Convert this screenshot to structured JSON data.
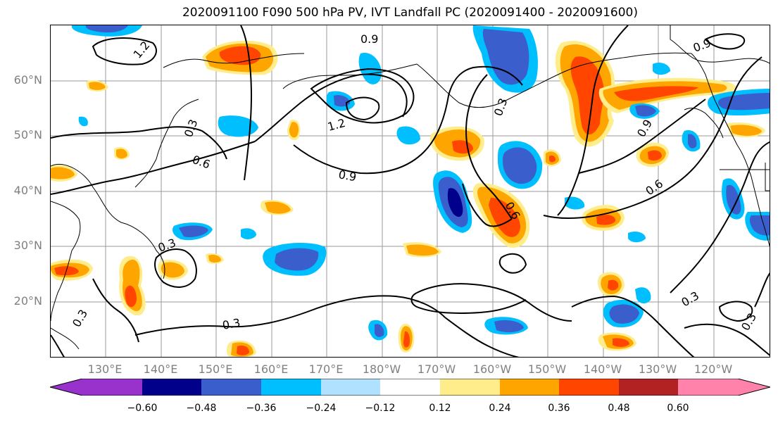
{
  "title": "2020091100 F090 500 hPa PV, IVT Landfall PC (2020091400 - 2020091600)",
  "lat_labels": [
    "60°N",
    "50°N",
    "40°N",
    "30°N",
    "20°N"
  ],
  "lon_labels": [
    "130°E",
    "140°E",
    "150°E",
    "160°E",
    "170°E",
    "180°W",
    "170°W",
    "160°W",
    "150°W",
    "140°W",
    "130°W",
    "120°W"
  ],
  "colorbar": {
    "colors": [
      "#9932cc",
      "#00008b",
      "#3a5fcd",
      "#00bfff",
      "#b0e2ff",
      "#ffffff",
      "#ffec8b",
      "#ffa500",
      "#ff4500",
      "#b22222",
      "#ff82ab"
    ],
    "tick_labels": [
      "−0.60",
      "−0.48",
      "−0.36",
      "−0.24",
      "−0.12",
      "0.12",
      "0.24",
      "0.36",
      "0.48",
      "0.60"
    ]
  },
  "contour_labels": [
    "0.9",
    "1.2",
    "1.2",
    "0.3",
    "0.6",
    "0.9",
    "0.3",
    "0.3",
    "0.6",
    "0.9",
    "0.6",
    "0.3",
    "0.3",
    "0.3",
    "0.3",
    "0.9"
  ]
}
